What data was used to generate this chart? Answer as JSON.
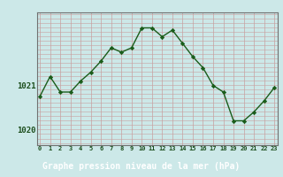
{
  "x": [
    0,
    1,
    2,
    3,
    4,
    5,
    6,
    7,
    8,
    9,
    10,
    11,
    12,
    13,
    14,
    15,
    16,
    17,
    18,
    19,
    20,
    21,
    22,
    23
  ],
  "y": [
    1020.75,
    1021.2,
    1020.85,
    1020.85,
    1021.1,
    1021.3,
    1021.55,
    1021.85,
    1021.75,
    1021.85,
    1022.3,
    1022.3,
    1022.1,
    1022.25,
    1021.95,
    1021.65,
    1021.4,
    1021.0,
    1020.85,
    1020.2,
    1020.2,
    1020.4,
    1020.65,
    1020.95
  ],
  "bg_color": "#cce8e8",
  "line_color": "#1a5c1a",
  "marker_color": "#1a5c1a",
  "grid_v_color": "#c8a0a0",
  "grid_h_color": "#c8a0a0",
  "xlabel": "Graphe pression niveau de la mer (hPa)",
  "xlabel_color": "#ffffff",
  "xlabel_bg": "#2a5c2a",
  "ytick_labels": [
    "1020",
    "1021"
  ],
  "ytick_values": [
    1020.0,
    1021.0
  ],
  "ylim": [
    1019.65,
    1022.65
  ],
  "xlim": [
    -0.3,
    23.3
  ],
  "tick_color": "#1a4c1a",
  "xtick_labels": [
    "0",
    "1",
    "2",
    "3",
    "4",
    "5",
    "6",
    "7",
    "8",
    "9",
    "10",
    "11",
    "12",
    "13",
    "14",
    "15",
    "16",
    "17",
    "18",
    "19",
    "20",
    "21",
    "22",
    "23"
  ]
}
